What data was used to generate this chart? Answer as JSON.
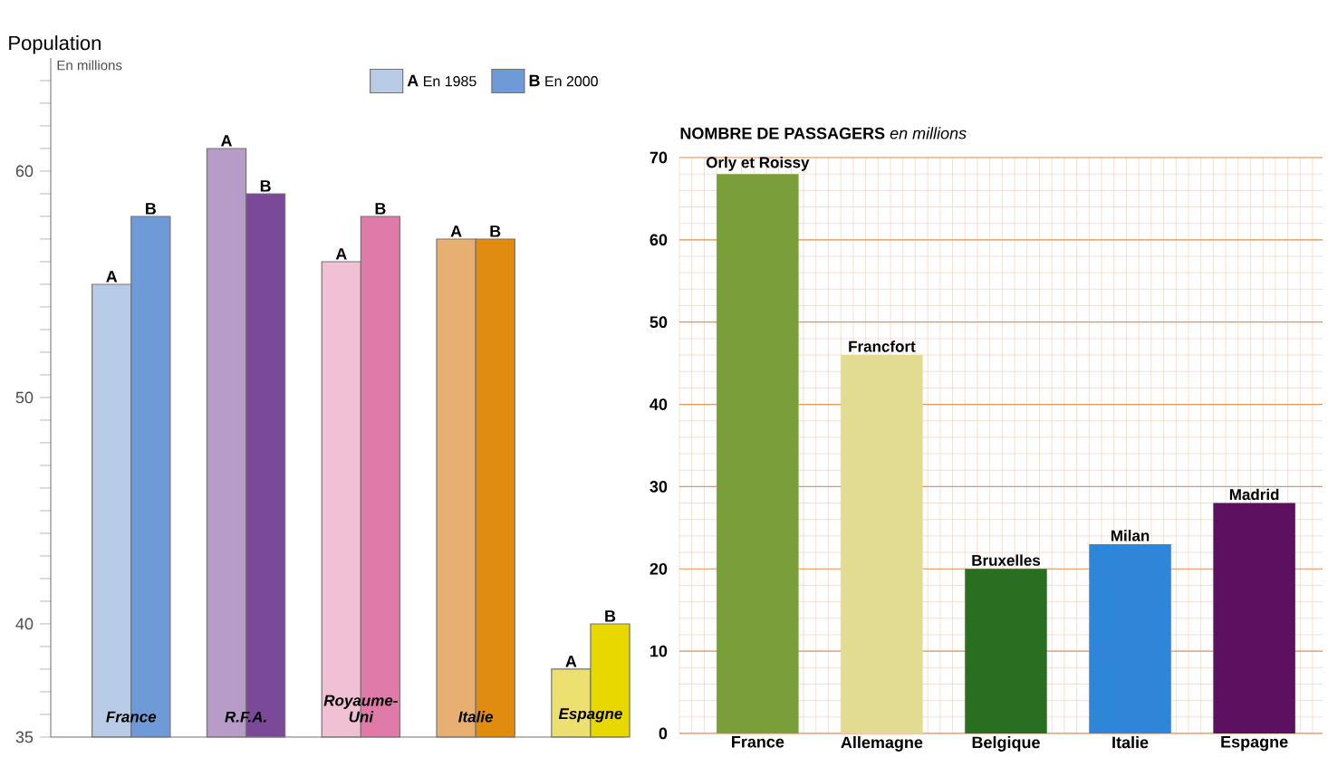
{
  "chart_data": [
    {
      "type": "bar",
      "title": "Population",
      "ylabel": "En millions",
      "categories": [
        "France",
        "R.F.A.",
        "Royaume-Uni",
        "Italie",
        "Espagne"
      ],
      "series": [
        {
          "name": "En 1985",
          "color": "#b8cce8",
          "colors": [
            "#b8cce8",
            "#b89cc8",
            "#f0c0d4",
            "#e8b070",
            "#ece070"
          ],
          "values": [
            55,
            61,
            56,
            57,
            38
          ],
          "value_labels": [
            "A",
            "A",
            "A",
            "A",
            "A"
          ]
        },
        {
          "name": "En 2000",
          "color": "#6e9ad8",
          "colors": [
            "#6e9ad8",
            "#7a4a98",
            "#e07aa8",
            "#e08c10",
            "#e8d800"
          ],
          "values": [
            58,
            59,
            58,
            57,
            40
          ],
          "value_labels": [
            "B",
            "B",
            "B",
            "B",
            "B"
          ]
        }
      ],
      "annotations": [
        "A",
        "B"
      ],
      "legend": "top right",
      "ylim": [
        35,
        65
      ],
      "yticks": [
        35,
        {
          "value": 36,
          "label": null
        },
        {
          "value": 37,
          "label": null
        },
        {
          "value": 38,
          "label": null
        },
        {
          "value": 39,
          "label": null
        },
        40,
        {
          "value": 41,
          "label": null
        },
        {
          "value": 42,
          "label": null
        },
        {
          "value": 43,
          "label": null
        },
        {
          "value": 44,
          "label": null
        },
        {
          "value": 45,
          "label": null
        },
        {
          "value": 46,
          "label": null
        },
        {
          "value": 47,
          "label": null
        },
        {
          "value": 48,
          "label": null
        },
        {
          "value": 49,
          "label": null
        },
        50,
        {
          "value": 51,
          "label": null
        },
        {
          "value": 52,
          "label": null
        },
        {
          "value": 53,
          "label": null
        },
        {
          "value": 54,
          "label": null
        },
        {
          "value": 55,
          "label": null
        },
        {
          "value": 56,
          "label": null
        },
        {
          "value": 57,
          "label": null
        },
        {
          "value": 58,
          "label": null
        },
        {
          "value": 59,
          "label": null
        },
        60,
        {
          "value": 61,
          "label": null
        },
        {
          "value": 62,
          "label": null
        },
        {
          "value": 63,
          "label": null
        },
        {
          "value": 64,
          "label": null
        }
      ]
    },
    {
      "type": "bar",
      "title": "**NOMBRE DE PASSAGERS** *en millions*",
      "categories": [
        "France",
        "Allemagne",
        "Belgique",
        "Italie",
        "Espagne"
      ],
      "values": [
        68,
        46,
        20,
        23,
        28
      ],
      "colors": [
        "#7a9e3a",
        "#e2dc92",
        "#2a6e22",
        "#2f86d8",
        "#5c1060"
      ],
      "annotations": [
        {
          "text": "Orly et Roissy",
          "x": "France",
          "y": 68
        },
        {
          "text": "Francfort",
          "x": "Allemagne",
          "y": 46
        },
        {
          "text": "Bruxelles",
          "x": "Belgique",
          "y": 20
        },
        {
          "text": "Milan",
          "x": "Italie",
          "y": 23
        },
        {
          "text": "Madrid",
          "x": "Espagne",
          "y": 28
        }
      ],
      "grid": true,
      "ylim": [
        0,
        70
      ],
      "yticks": [
        0,
        10,
        20,
        30,
        40,
        50,
        60,
        70
      ]
    }
  ]
}
